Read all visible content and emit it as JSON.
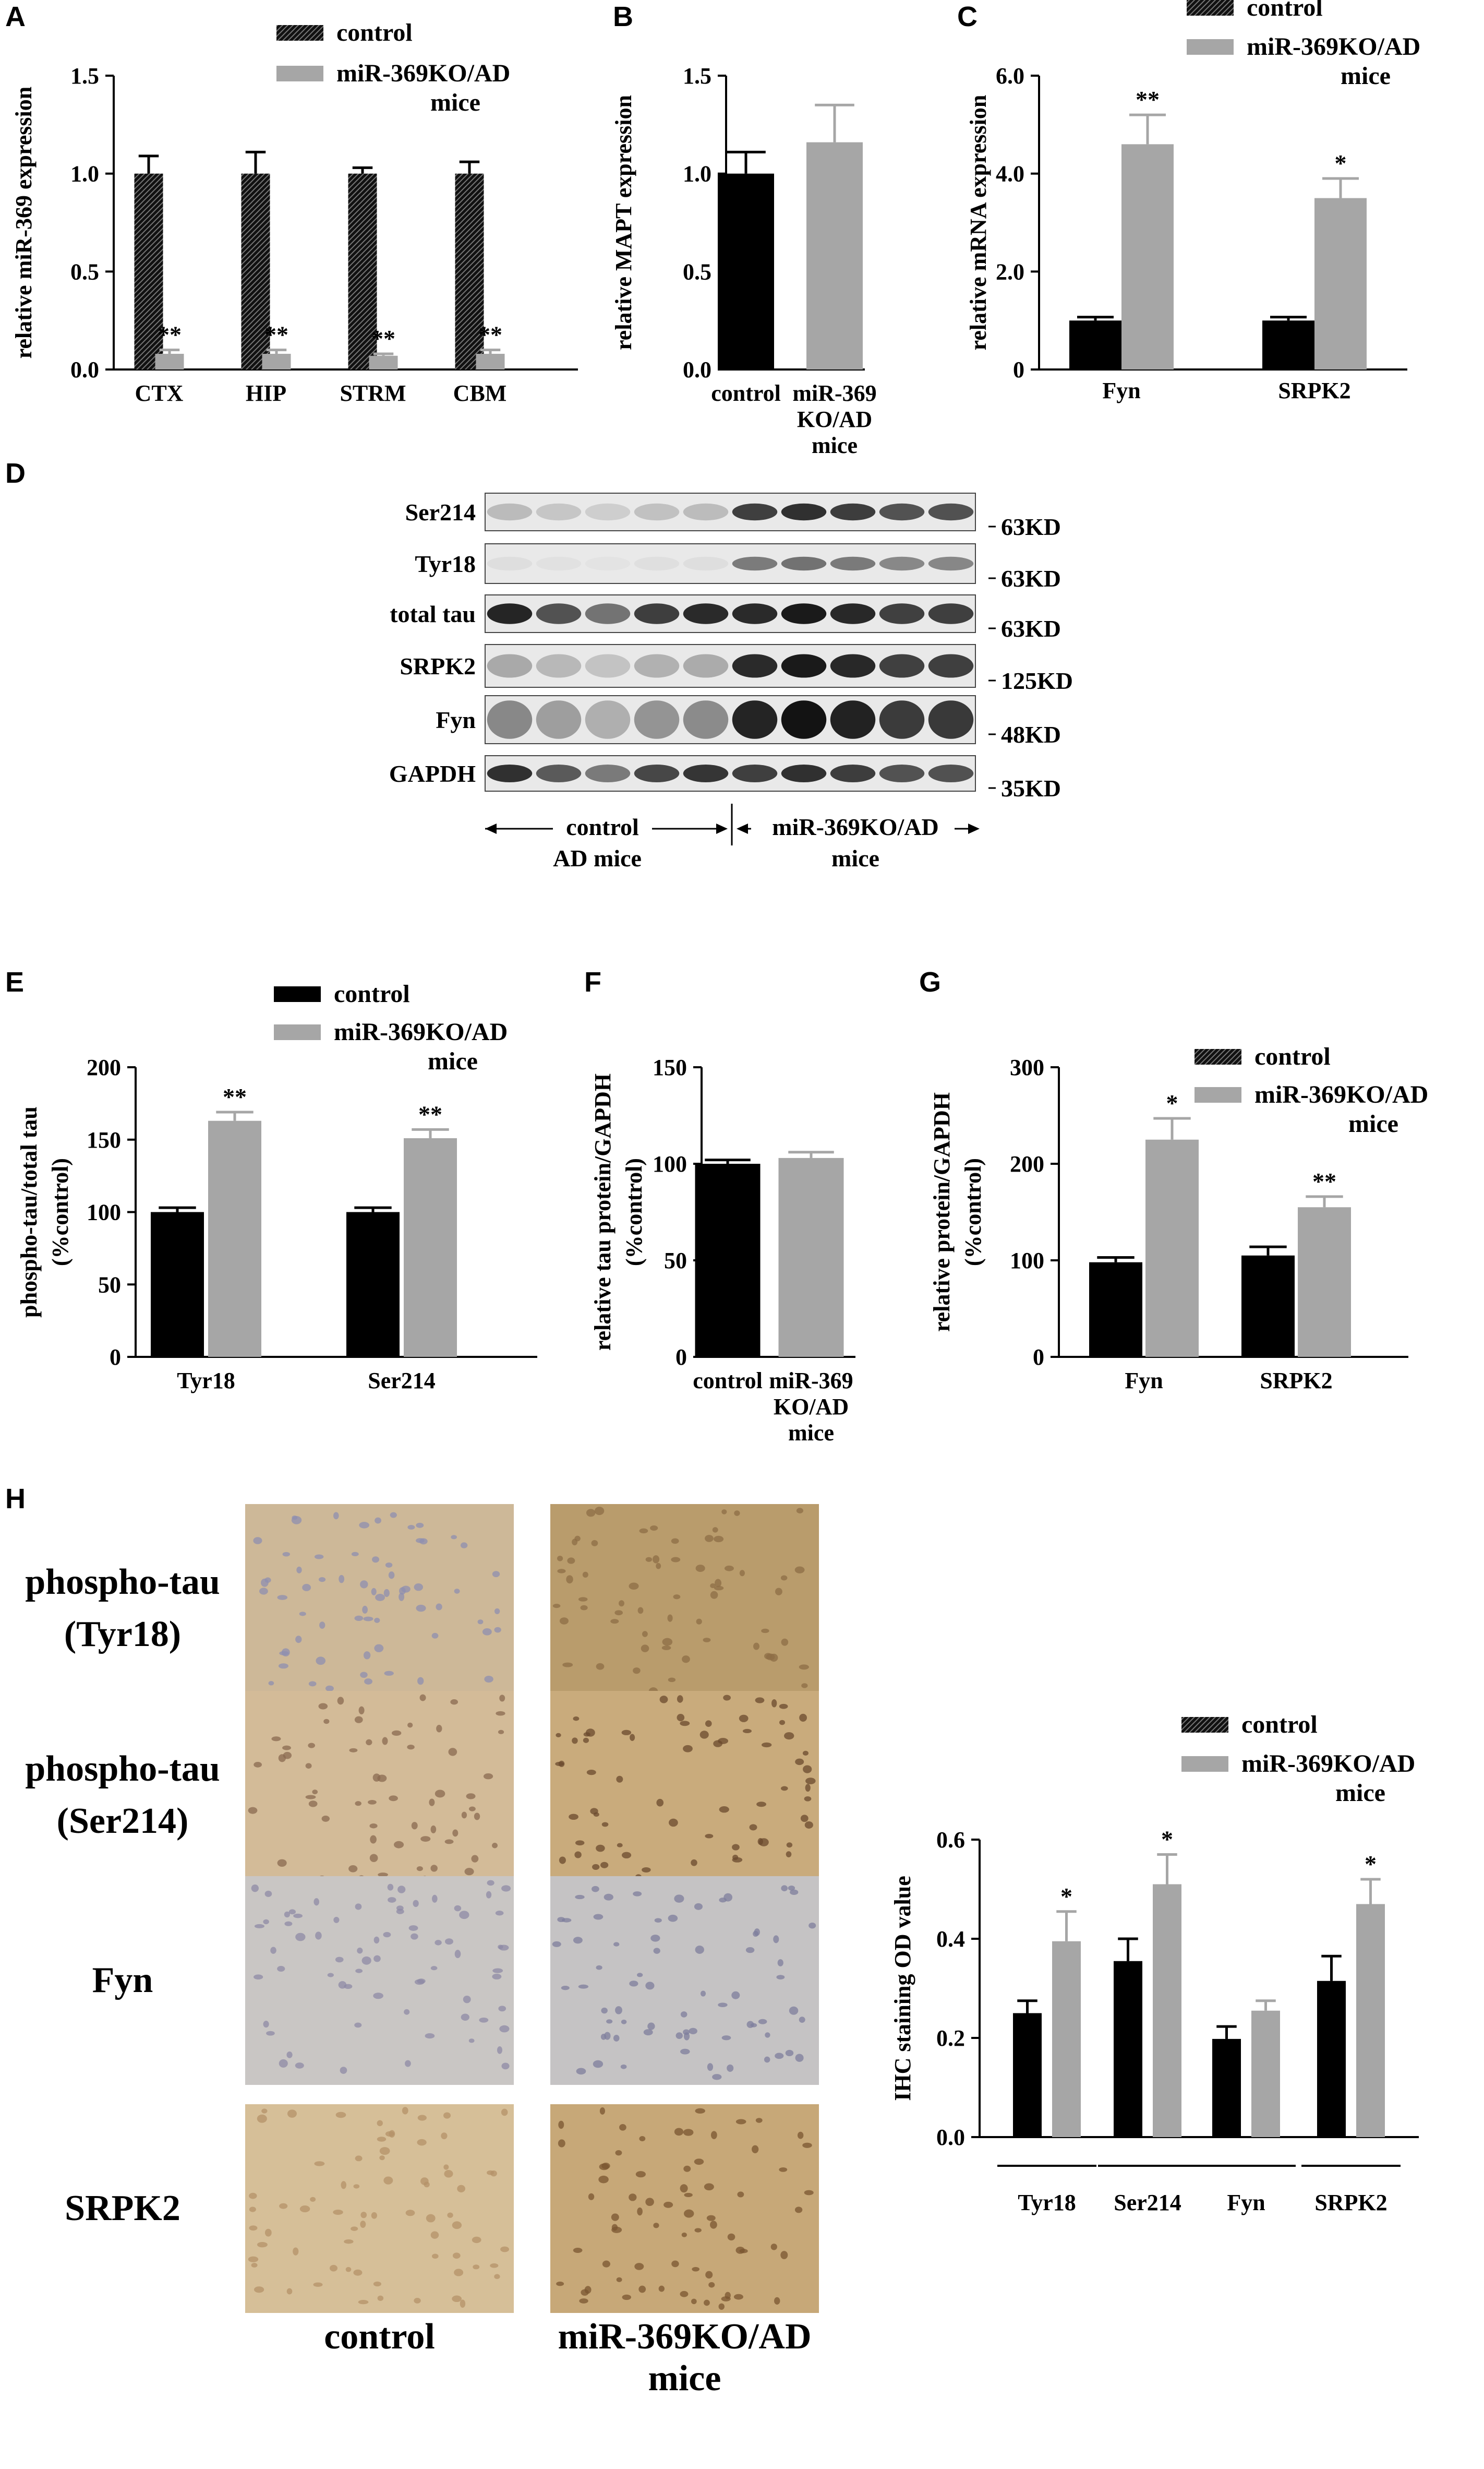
{
  "panel_letters": [
    "A",
    "B",
    "C",
    "D",
    "E",
    "F",
    "G",
    "H"
  ],
  "colors": {
    "control": "#000000",
    "ko": "#a6a6a6",
    "hatch": "#3a3a3a"
  },
  "chart_data": [
    {
      "id": "A",
      "type": "bar",
      "ylabel": "relative miR-369 expression",
      "ylim": [
        0,
        1.5
      ],
      "yticks": [
        "0.0",
        "0.5",
        "1.0",
        "1.5"
      ],
      "categories": [
        "CTX",
        "HIP",
        "STRM",
        "CBM"
      ],
      "legend": [
        "control",
        "miR-369KO/AD",
        "mice"
      ],
      "series": [
        {
          "name": "control",
          "values": [
            1.0,
            1.0,
            1.0,
            1.0
          ],
          "errors": [
            0.09,
            0.11,
            0.03,
            0.06
          ]
        },
        {
          "name": "miR-369KO/AD mice",
          "values": [
            0.08,
            0.08,
            0.07,
            0.08
          ],
          "errors": [
            0.02,
            0.02,
            0.01,
            0.02
          ]
        }
      ],
      "annotations": [
        "**",
        "**",
        "**",
        "**"
      ]
    },
    {
      "id": "B",
      "type": "bar",
      "ylabel": "relative MAPT expression",
      "ylim": [
        0,
        1.5
      ],
      "yticks": [
        "0.0",
        "0.5",
        "1.0",
        "1.5"
      ],
      "categories": [
        "control",
        "miR-369 KO/AD mice"
      ],
      "xticklines": [
        [
          "control"
        ],
        [
          "miR-369",
          "KO/AD",
          "mice"
        ]
      ],
      "values": [
        1.0,
        1.16
      ],
      "errors": [
        0.11,
        0.19
      ]
    },
    {
      "id": "C",
      "type": "bar",
      "ylabel": "relative mRNA expression",
      "ylim": [
        0,
        6
      ],
      "yticks": [
        "0",
        "2.0",
        "4.0",
        "6.0"
      ],
      "categories": [
        "Fyn",
        "SRPK2"
      ],
      "legend": [
        "control",
        "miR-369KO/AD",
        "mice"
      ],
      "series": [
        {
          "name": "control",
          "values": [
            1.0,
            1.0
          ],
          "errors": [
            0.07,
            0.07
          ]
        },
        {
          "name": "miR-369KO/AD mice",
          "values": [
            4.6,
            3.5
          ],
          "errors": [
            0.6,
            0.4
          ]
        }
      ],
      "annotations": [
        "**",
        "*"
      ]
    },
    {
      "id": "E",
      "type": "bar",
      "ylabel": "phospho-tau/total tau (%control)",
      "ylines": [
        "phospho-tau/total tau",
        "(%control)"
      ],
      "ylim": [
        0,
        200
      ],
      "yticks": [
        "0",
        "50",
        "100",
        "150",
        "200"
      ],
      "categories": [
        "Tyr18",
        "Ser214"
      ],
      "legend": [
        "control",
        "miR-369KO/AD",
        "mice"
      ],
      "series": [
        {
          "name": "control",
          "values": [
            100,
            100
          ],
          "errors": [
            3,
            3
          ]
        },
        {
          "name": "miR-369KO/AD mice",
          "values": [
            163,
            151
          ],
          "errors": [
            6,
            6
          ]
        }
      ],
      "annotations": [
        "**",
        "**"
      ]
    },
    {
      "id": "F",
      "type": "bar",
      "ylabel": "relative tau protein/GAPDH (%control)",
      "ylines": [
        "relative tau protein/GAPDH",
        "(%control)"
      ],
      "ylim": [
        0,
        150
      ],
      "yticks": [
        "0",
        "50",
        "100",
        "150"
      ],
      "categories": [
        "control",
        "miR-369 KO/AD mice"
      ],
      "xticklines": [
        [
          "control"
        ],
        [
          "miR-369",
          "KO/AD",
          "mice"
        ]
      ],
      "values": [
        100,
        103
      ],
      "errors": [
        2,
        3
      ]
    },
    {
      "id": "G",
      "type": "bar",
      "ylabel": "relative protein/GAPDH (%control)",
      "ylines": [
        "relative protein/GAPDH",
        "(%control)"
      ],
      "ylim": [
        0,
        300
      ],
      "yticks": [
        "0",
        "100",
        "200",
        "300"
      ],
      "categories": [
        "Fyn",
        "SRPK2"
      ],
      "legend": [
        "control",
        "miR-369KO/AD",
        "mice"
      ],
      "series": [
        {
          "name": "control",
          "values": [
            98,
            105
          ],
          "errors": [
            5,
            9
          ]
        },
        {
          "name": "miR-369KO/AD mice",
          "values": [
            225,
            155
          ],
          "errors": [
            22,
            11
          ]
        }
      ],
      "annotations": [
        "*",
        "**"
      ]
    },
    {
      "id": "H",
      "type": "bar",
      "ylabel": "IHC staining OD value",
      "ylim": [
        0,
        0.6
      ],
      "yticks": [
        "0.0",
        "0.2",
        "0.4",
        "0.6"
      ],
      "categories": [
        "Tyr18",
        "Ser214",
        "Fyn",
        "SRPK2"
      ],
      "legend": [
        "control",
        "miR-369KO/AD",
        "mice"
      ],
      "series": [
        {
          "name": "control",
          "values": [
            0.25,
            0.355,
            0.198,
            0.315
          ],
          "errors": [
            0.025,
            0.045,
            0.025,
            0.05
          ]
        },
        {
          "name": "miR-369KO/AD mice",
          "values": [
            0.395,
            0.51,
            0.255,
            0.47
          ],
          "errors": [
            0.06,
            0.06,
            0.02,
            0.05
          ]
        }
      ],
      "annotations": [
        "*",
        "*",
        "",
        "*"
      ]
    }
  ],
  "western": {
    "rows": [
      {
        "label": "Ser214",
        "size": "63KD",
        "ctrl": 0.22,
        "ko": 0.85,
        "thick": 0.45
      },
      {
        "label": "Tyr18",
        "size": "63KD",
        "ctrl": 0.06,
        "ko": 0.55,
        "thick": 0.35
      },
      {
        "label": "total tau",
        "size": "63KD",
        "ctrl": 0.9,
        "ko": 0.95,
        "thick": 0.55
      },
      {
        "label": "SRPK2",
        "size": "125KD",
        "ctrl": 0.3,
        "ko": 0.95,
        "thick": 0.55
      },
      {
        "label": "Fyn",
        "size": "48KD",
        "ctrl": 0.45,
        "ko": 0.98,
        "thick": 0.8
      },
      {
        "label": "GAPDH",
        "size": "35KD",
        "ctrl": 0.85,
        "ko": 0.85,
        "thick": 0.5
      }
    ],
    "group_ctrl": [
      "control",
      "AD  mice"
    ],
    "group_ko": [
      "miR-369KO/AD",
      "mice"
    ]
  },
  "ihc": {
    "rows": [
      {
        "label": [
          "phospho-tau",
          "(Tyr18)"
        ],
        "ctrl_color": "#cdb898",
        "ko_color": "#b99c6c",
        "cell_ctrl": "#8e8fb0",
        "cell_ko": "#8d6d45"
      },
      {
        "label": [
          "phospho-tau",
          "(Ser214)"
        ],
        "ctrl_color": "#d3bb98",
        "ko_color": "#c9ab7c",
        "cell_ctrl": "#8a6a50",
        "cell_ko": "#6a4a2e"
      },
      {
        "label": [
          "Fyn"
        ],
        "ctrl_color": "#c9c6c4",
        "ko_color": "#c5c3c4",
        "cell_ctrl": "#8e8aa5",
        "cell_ko": "#7e7d9c"
      },
      {
        "label": [
          "SRPK2"
        ],
        "ctrl_color": "#d6bf98",
        "ko_color": "#c7a878",
        "cell_ctrl": "#b49268",
        "cell_ko": "#7a5530"
      }
    ],
    "col_labels": [
      [
        "control"
      ],
      [
        "miR-369KO/AD",
        "mice"
      ]
    ]
  }
}
